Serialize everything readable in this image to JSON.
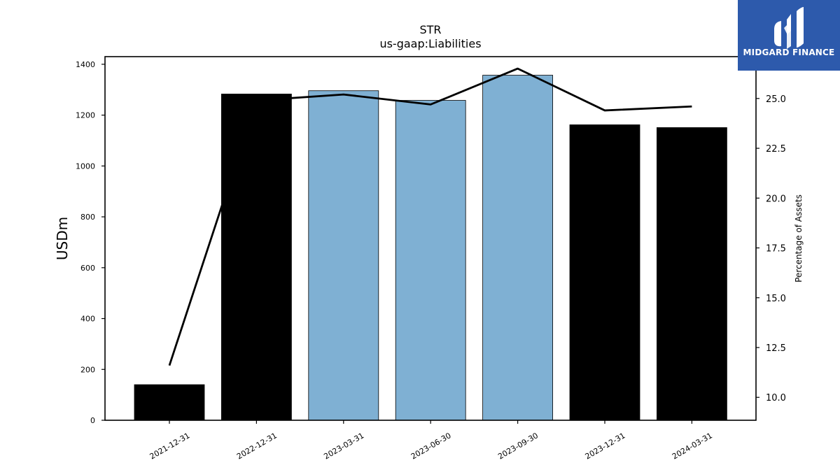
{
  "chart_data": {
    "type": "bar",
    "title": "STR",
    "subtitle": "us-gaap:Liabilities",
    "ylabel": "USDm",
    "y2label": "Percentage of Assets",
    "categories": [
      "2021-12-31",
      "2022-12-31",
      "2023-03-31",
      "2023-06-30",
      "2023-09-30",
      "2023-12-31",
      "2024-03-31"
    ],
    "series": [
      {
        "values": [
          140,
          1283,
          1296,
          1258,
          1357,
          1162,
          1151
        ],
        "colors": [
          "#000000",
          "#000000",
          "#7fb0d3",
          "#7fb0d3",
          "#7fb0d3",
          "#000000",
          "#000000"
        ],
        "axis": "left"
      },
      {
        "type": "line",
        "values": [
          11.6,
          24.9,
          25.2,
          24.7,
          26.5,
          24.4,
          24.6
        ],
        "color": "#000000",
        "axis": "right"
      }
    ],
    "ylim": [
      0,
      1430
    ],
    "yticks": [
      0,
      200,
      400,
      600,
      800,
      1000,
      1200,
      1400
    ],
    "y2lim": [
      8.85,
      27.1
    ],
    "y2ticks": [
      "10.0",
      "12.5",
      "15.0",
      "17.5",
      "20.0",
      "22.5",
      "25.0"
    ],
    "grid": false
  },
  "logo": {
    "text": "MIDGARD FINANCE",
    "background": "#2d5aac"
  }
}
